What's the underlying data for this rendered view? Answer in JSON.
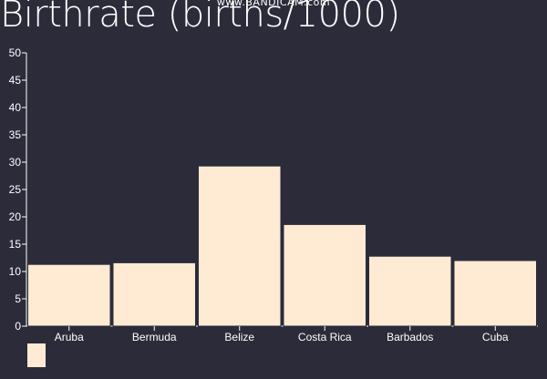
{
  "watermark": "www.BANDICAM.com",
  "chart_data": {
    "type": "bar",
    "title": "Birthrate (births/1000)",
    "xlabel": "",
    "ylabel": "",
    "categories": [
      "Aruba",
      "Bermuda",
      "Belize",
      "Costa Rica",
      "Barbados",
      "Cuba"
    ],
    "values": [
      11.3,
      11.6,
      29.3,
      18.6,
      12.8,
      12.0
    ],
    "ylim": [
      0,
      50
    ],
    "yticks": [
      0,
      5,
      10,
      15,
      20,
      25,
      30,
      35,
      40,
      45,
      50
    ],
    "grid": false,
    "legend": "bottom-left",
    "colors": {
      "bar": "#ffebd4",
      "bar_stroke": "#2b2b3a",
      "text": "#ffffff",
      "background": "#2b2b3a"
    }
  }
}
